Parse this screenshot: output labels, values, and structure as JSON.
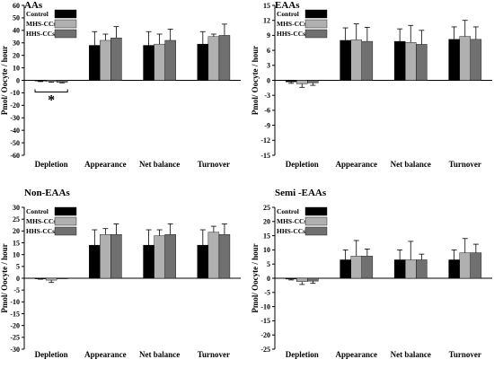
{
  "chart_data": [
    {
      "type": "bar",
      "title": "AAs",
      "ylabel": "Pmol/ Oocyte / hour",
      "ylim": [
        -60,
        60
      ],
      "yticks": [
        60,
        50,
        40,
        30,
        20,
        10,
        0,
        -10,
        -20,
        -30,
        -40,
        -50,
        -60
      ],
      "categories": [
        "Depletion",
        "Appearance",
        "Net balance",
        "Turnover"
      ],
      "legend_position": "top-left",
      "series": [
        {
          "name": "Control",
          "color": "#000000",
          "values": [
            -0.5,
            28,
            28,
            29
          ],
          "errors": [
            0.5,
            11,
            11,
            10
          ]
        },
        {
          "name": "MHS-CCs",
          "color": "#b0b0b0",
          "values": [
            -1,
            32,
            29,
            35
          ],
          "errors": [
            0.5,
            5,
            8,
            2
          ]
        },
        {
          "name": "HHS-CCs",
          "color": "#707070",
          "values": [
            -1.5,
            34,
            32,
            36
          ],
          "errors": [
            0.5,
            9,
            9,
            9
          ]
        }
      ],
      "annotation": "*"
    },
    {
      "type": "bar",
      "title": "EAAs",
      "ylabel": "Pmol/ Oocyte / hour",
      "ylim": [
        -15,
        15
      ],
      "yticks": [
        15,
        12,
        9,
        6,
        3,
        0,
        -3,
        -6,
        -9,
        -12,
        -15
      ],
      "categories": [
        "Depletion",
        "Appearance",
        "Net balance",
        "Turnover"
      ],
      "legend_position": "top-left",
      "series": [
        {
          "name": "Control",
          "color": "#000000",
          "values": [
            -0.3,
            8,
            7.8,
            8.2
          ],
          "errors": [
            0.3,
            2.5,
            2.5,
            2.5
          ]
        },
        {
          "name": "MHS-CCs",
          "color": "#b0b0b0",
          "values": [
            -0.7,
            8.1,
            7.6,
            8.8
          ],
          "errors": [
            0.7,
            3.2,
            3.4,
            3.2
          ]
        },
        {
          "name": "HHS-CCs",
          "color": "#707070",
          "values": [
            -0.5,
            7.8,
            7.2,
            8.2
          ],
          "errors": [
            0.5,
            2.8,
            2.8,
            2.5
          ]
        }
      ]
    },
    {
      "type": "bar",
      "title": "Non-EAAs",
      "ylabel": "Pmol/ Oocyte / hour",
      "ylim": [
        -30,
        30
      ],
      "yticks": [
        30,
        25,
        20,
        15,
        10,
        5,
        0,
        -5,
        -10,
        -15,
        -20,
        -25,
        -30
      ],
      "categories": [
        "Depletion",
        "Appearance",
        "Net balance",
        "Turnover"
      ],
      "legend_position": "top-left",
      "series": [
        {
          "name": "Control",
          "color": "#000000",
          "values": [
            -0.2,
            14,
            14,
            14
          ],
          "errors": [
            0.2,
            6.5,
            6.5,
            6.5
          ]
        },
        {
          "name": "MHS-CCs",
          "color": "#b0b0b0",
          "values": [
            -0.8,
            18.5,
            18,
            19.5
          ],
          "errors": [
            1.0,
            2.5,
            2.5,
            2.5
          ]
        },
        {
          "name": "HHS-CCs",
          "color": "#707070",
          "values": [
            0,
            18.5,
            18.5,
            18.5
          ],
          "errors": [
            0,
            4.5,
            4.5,
            4.5
          ]
        }
      ]
    },
    {
      "type": "bar",
      "title": "Semi -EAAs",
      "ylabel": "Pmol/ Oocyte / hour",
      "ylim": [
        -25,
        25
      ],
      "yticks": [
        25,
        20,
        15,
        10,
        5,
        0,
        -5,
        -10,
        -15,
        -20,
        -25
      ],
      "categories": [
        "Depletion",
        "Appearance",
        "Net balance",
        "Turnover"
      ],
      "legend_position": "top-left",
      "series": [
        {
          "name": "Control",
          "color": "#000000",
          "values": [
            -0.3,
            6.5,
            6.5,
            6.5
          ],
          "errors": [
            0.3,
            3.5,
            3.5,
            3.5
          ]
        },
        {
          "name": "MHS-CCs",
          "color": "#b0b0b0",
          "values": [
            -1.2,
            7.8,
            6.5,
            9.0
          ],
          "errors": [
            1.0,
            5.5,
            6.5,
            5.0
          ]
        },
        {
          "name": "HHS-CCs",
          "color": "#707070",
          "values": [
            -1.0,
            7.8,
            6.5,
            9.0
          ],
          "errors": [
            0.8,
            2.5,
            2.0,
            3.0
          ]
        }
      ]
    }
  ]
}
